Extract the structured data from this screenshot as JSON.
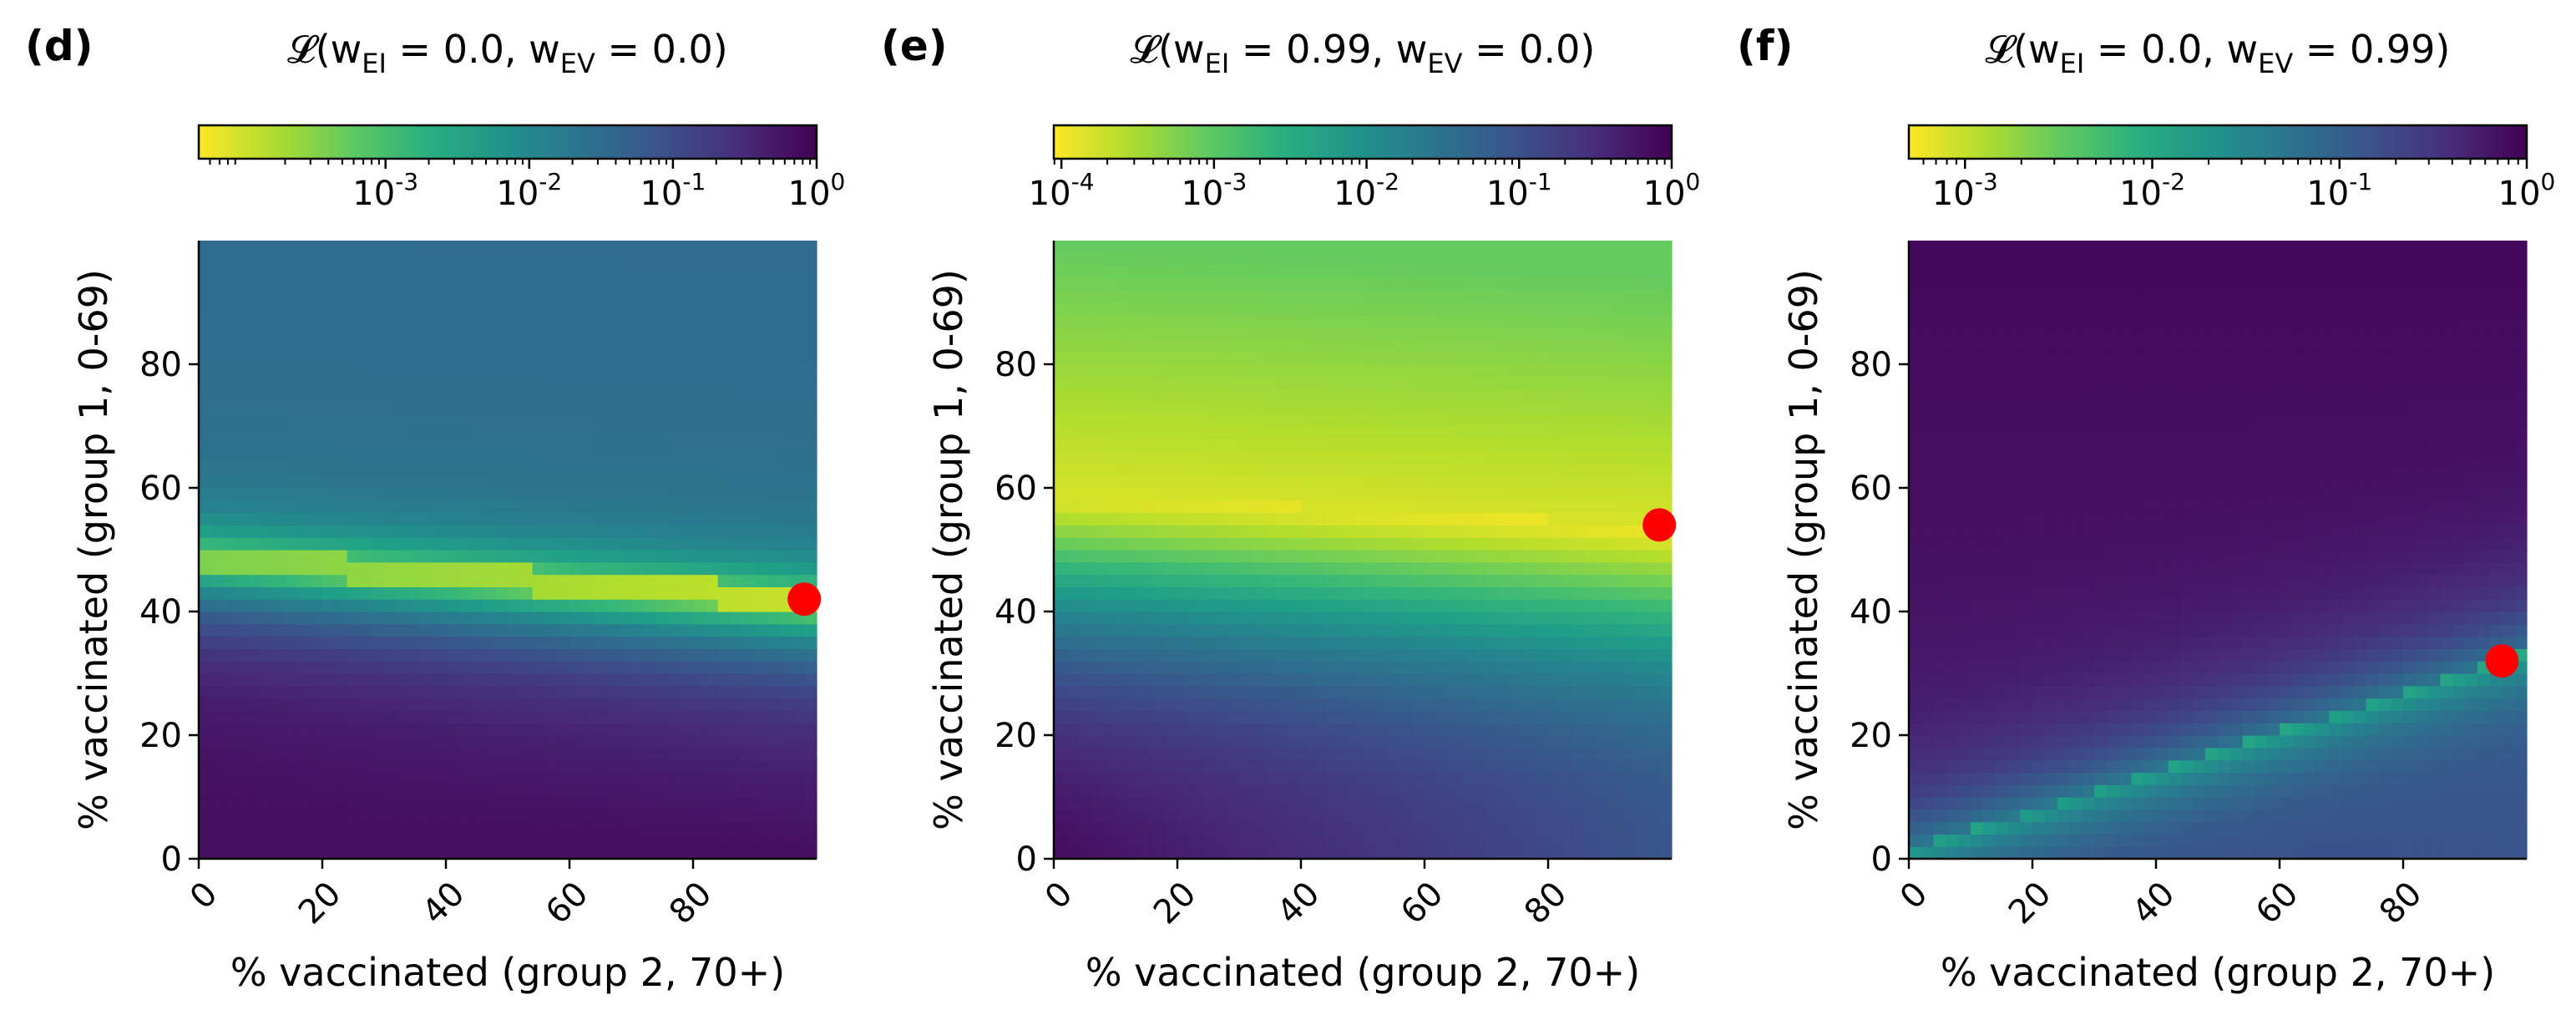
{
  "chart_data": [
    {
      "type": "heatmap",
      "panel_label": "(d)",
      "title_prefix": "𝓛(w",
      "title_sub1": "EI",
      "title_mid1": " = 0.0, w",
      "title_sub2": "EV",
      "title_mid2": " = 0.0)",
      "title": "L(w_EI = 0.0, w_EV = 0.0)",
      "xlabel": "% vaccinated (group 2, 70+)",
      "ylabel": "% vaccinated (group 1, 0-69)",
      "x_ticks": [
        0,
        20,
        40,
        60,
        80
      ],
      "y_ticks": [
        0,
        20,
        40,
        60,
        80
      ],
      "xlim": [
        0,
        100
      ],
      "ylim": [
        0,
        100
      ],
      "colorbar": {
        "scale": "log",
        "min_exp": -4.3,
        "max_exp": 0,
        "tick_exponents": [
          -3,
          -2,
          -1,
          0
        ],
        "colormap": "viridis_r"
      },
      "pattern": "band",
      "optimum": {
        "x": 98,
        "y": 42
      },
      "marker_color": "#ff0000"
    },
    {
      "type": "heatmap",
      "panel_label": "(e)",
      "title_prefix": "𝓛(w",
      "title_sub1": "EI",
      "title_mid1": " = 0.99, w",
      "title_sub2": "EV",
      "title_mid2": " = 0.0)",
      "title": "L(w_EI = 0.99, w_EV = 0.0)",
      "xlabel": "% vaccinated (group 2, 70+)",
      "ylabel": "% vaccinated (group 1, 0-69)",
      "x_ticks": [
        0,
        20,
        40,
        60,
        80
      ],
      "y_ticks": [
        0,
        20,
        40,
        60,
        80
      ],
      "xlim": [
        0,
        100
      ],
      "ylim": [
        0,
        100
      ],
      "colorbar": {
        "scale": "log",
        "min_exp": -4.05,
        "max_exp": 0,
        "tick_exponents": [
          -4,
          -3,
          -2,
          -1,
          0
        ],
        "colormap": "viridis_r"
      },
      "pattern": "upper",
      "optimum": {
        "x": 98,
        "y": 54
      },
      "marker_color": "#ff0000"
    },
    {
      "type": "heatmap",
      "panel_label": "(f)",
      "title_prefix": "𝓛(w",
      "title_sub1": "EI",
      "title_mid1": " = 0.0, w",
      "title_sub2": "EV",
      "title_mid2": " = 0.99)",
      "title": "L(w_EI = 0.0, w_EV = 0.99)",
      "xlabel": "% vaccinated (group 2, 70+)",
      "ylabel": "% vaccinated (group 1, 0-69)",
      "x_ticks": [
        0,
        20,
        40,
        60,
        80
      ],
      "y_ticks": [
        0,
        20,
        40,
        60,
        80
      ],
      "xlim": [
        0,
        100
      ],
      "ylim": [
        0,
        100
      ],
      "colorbar": {
        "scale": "log",
        "min_exp": -3.3,
        "max_exp": 0,
        "tick_exponents": [
          -3,
          -2,
          -1,
          0
        ],
        "colormap": "viridis_r"
      },
      "pattern": "diagonal",
      "optimum": {
        "x": 96,
        "y": 32
      },
      "marker_color": "#ff0000"
    }
  ]
}
